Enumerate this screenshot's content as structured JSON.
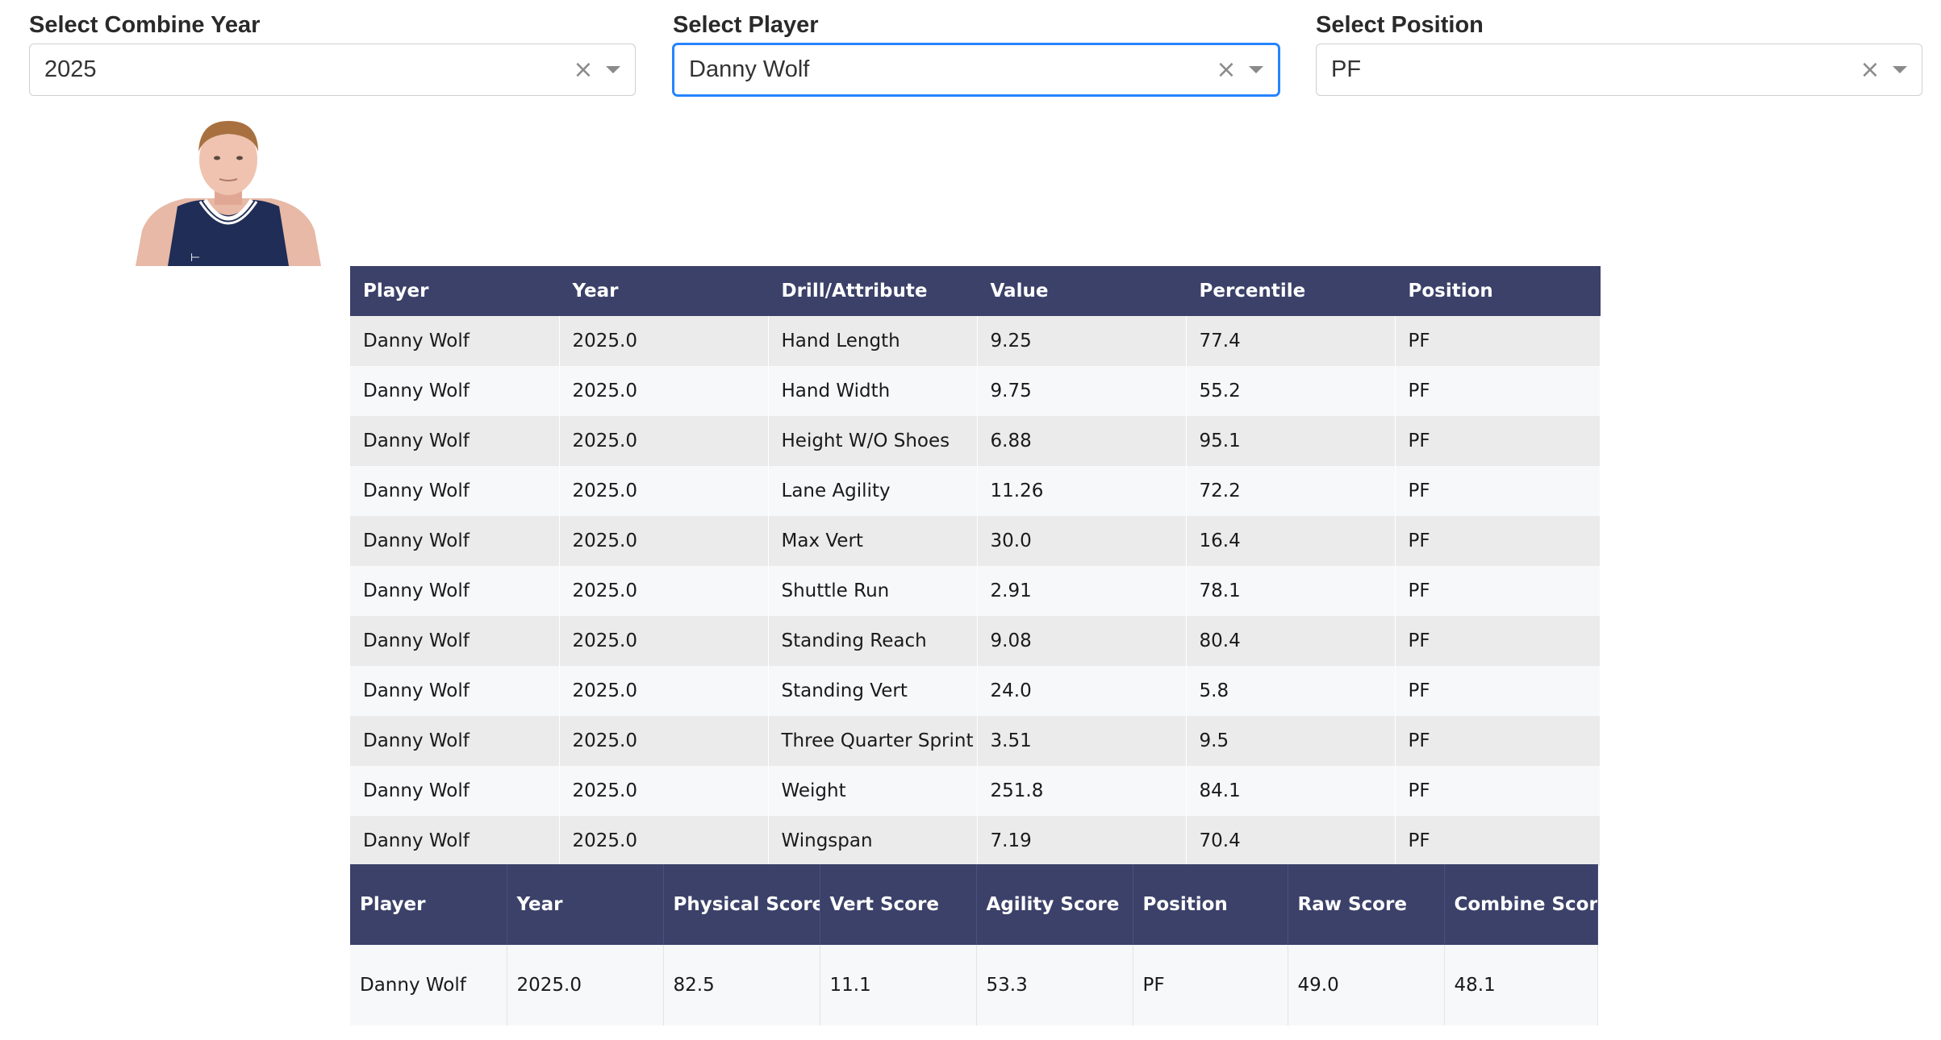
{
  "filters": [
    {
      "label": "Select Combine Year",
      "value": "2025"
    },
    {
      "label": "Select Player",
      "value": "Danny Wolf"
    },
    {
      "label": "Select Position",
      "value": "PF"
    }
  ],
  "icons": {
    "clear": "close-icon",
    "dropdown": "chevron-down-icon"
  },
  "colors": {
    "header": "#3b4169",
    "focus": "#2684ff"
  },
  "drill_table": {
    "headers": [
      "Player",
      "Year",
      "Drill/Attribute",
      "Value",
      "Percentile",
      "Position"
    ],
    "rows": [
      [
        "Danny Wolf",
        "2025.0",
        "Hand Length",
        "9.25",
        "77.4",
        "PF"
      ],
      [
        "Danny Wolf",
        "2025.0",
        "Hand Width",
        "9.75",
        "55.2",
        "PF"
      ],
      [
        "Danny Wolf",
        "2025.0",
        "Height W/O Shoes",
        "6.88",
        "95.1",
        "PF"
      ],
      [
        "Danny Wolf",
        "2025.0",
        "Lane Agility",
        "11.26",
        "72.2",
        "PF"
      ],
      [
        "Danny Wolf",
        "2025.0",
        "Max Vert",
        "30.0",
        "16.4",
        "PF"
      ],
      [
        "Danny Wolf",
        "2025.0",
        "Shuttle Run",
        "2.91",
        "78.1",
        "PF"
      ],
      [
        "Danny Wolf",
        "2025.0",
        "Standing Reach",
        "9.08",
        "80.4",
        "PF"
      ],
      [
        "Danny Wolf",
        "2025.0",
        "Standing Vert",
        "24.0",
        "5.8",
        "PF"
      ],
      [
        "Danny Wolf",
        "2025.0",
        "Three Quarter Sprint",
        "3.51",
        "9.5",
        "PF"
      ],
      [
        "Danny Wolf",
        "2025.0",
        "Weight",
        "251.8",
        "84.1",
        "PF"
      ],
      [
        "Danny Wolf",
        "2025.0",
        "Wingspan",
        "7.19",
        "70.4",
        "PF"
      ]
    ]
  },
  "score_table": {
    "headers": [
      "Player",
      "Year",
      "Physical Score",
      "Vert Score",
      "Agility Score",
      "Position",
      "Raw Score",
      "Combine Score"
    ],
    "rows": [
      [
        "Danny Wolf",
        "2025.0",
        "82.5",
        "11.1",
        "53.3",
        "PF",
        "49.0",
        "48.1"
      ]
    ]
  }
}
